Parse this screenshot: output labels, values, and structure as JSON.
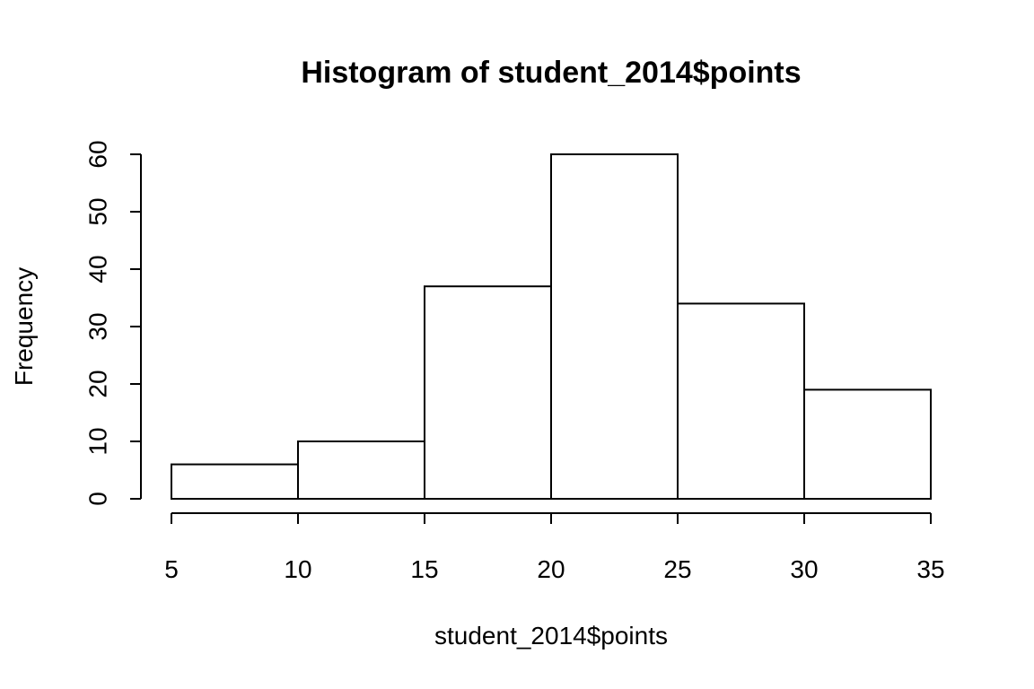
{
  "chart_data": {
    "type": "bar",
    "title": "Histogram of student_2014$points",
    "xlabel": "student_2014$points",
    "ylabel": "Frequency",
    "bins": [
      {
        "start": 5,
        "end": 10,
        "count": 6
      },
      {
        "start": 10,
        "end": 15,
        "count": 10
      },
      {
        "start": 15,
        "end": 20,
        "count": 37
      },
      {
        "start": 20,
        "end": 25,
        "count": 60
      },
      {
        "start": 25,
        "end": 30,
        "count": 34
      },
      {
        "start": 30,
        "end": 35,
        "count": 19
      }
    ],
    "xticks": [
      "5",
      "10",
      "15",
      "20",
      "25",
      "30",
      "35"
    ],
    "yticks": [
      "0",
      "10",
      "20",
      "30",
      "40",
      "50",
      "60"
    ],
    "xlim": [
      5,
      35
    ],
    "ylim": [
      0,
      60
    ],
    "grid": false,
    "fill_color": "#ffffff",
    "stroke_color": "#000000"
  }
}
